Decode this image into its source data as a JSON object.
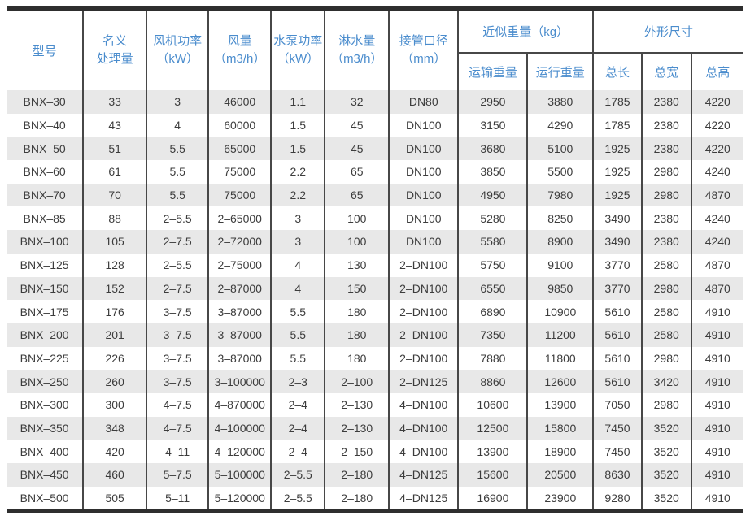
{
  "colors": {
    "header_text": "#4a8ccd",
    "body_text": "#3c3c3c",
    "stripe": "#e8e8e8",
    "grid_line": "#474747",
    "edge_bar": "#2e2e2e",
    "background": "#ffffff"
  },
  "table": {
    "headers": {
      "model": "型号",
      "capacity": [
        "名义",
        "处理量"
      ],
      "fan_power": [
        "风机功率",
        "（kW）"
      ],
      "air_flow": [
        "风量",
        "（m3/h）"
      ],
      "pump_power": [
        "水泵功率",
        "（kW）"
      ],
      "spray_volume": [
        "淋水量",
        "（m3/h）"
      ],
      "pipe_diameter": [
        "接管口径",
        "（mm）"
      ],
      "weight_group": "近似重量（kg）",
      "dimensions_group": "外形尺寸",
      "transport_weight": "运输重量",
      "operating_weight": "运行重量",
      "total_length": "总长",
      "total_width": "总宽",
      "total_height": "总高"
    },
    "columns": [
      "model",
      "capacity",
      "fan_power",
      "air_flow",
      "pump_power",
      "spray_volume",
      "pipe_diameter",
      "transport_weight",
      "operating_weight",
      "total_length",
      "total_width",
      "total_height"
    ],
    "rows": [
      [
        "BNX–30",
        "33",
        "3",
        "46000",
        "1.1",
        "32",
        "DN80",
        "2950",
        "3880",
        "1785",
        "2380",
        "4220"
      ],
      [
        "BNX–40",
        "43",
        "4",
        "60000",
        "1.5",
        "45",
        "DN100",
        "3150",
        "4290",
        "1785",
        "2380",
        "4220"
      ],
      [
        "BNX–50",
        "51",
        "5.5",
        "65000",
        "1.5",
        "45",
        "DN100",
        "3680",
        "5100",
        "1925",
        "2380",
        "4220"
      ],
      [
        "BNX–60",
        "61",
        "5.5",
        "75000",
        "2.2",
        "65",
        "DN100",
        "3850",
        "5500",
        "1925",
        "2980",
        "4240"
      ],
      [
        "BNX–70",
        "70",
        "5.5",
        "75000",
        "2.2",
        "65",
        "DN100",
        "4950",
        "7980",
        "1925",
        "2980",
        "4870"
      ],
      [
        "BNX–85",
        "88",
        "2–5.5",
        "2–65000",
        "3",
        "100",
        "DN100",
        "5280",
        "8250",
        "3490",
        "2380",
        "4240"
      ],
      [
        "BNX–100",
        "105",
        "2–7.5",
        "2–72000",
        "3",
        "100",
        "DN100",
        "5580",
        "8900",
        "3490",
        "2380",
        "4240"
      ],
      [
        "BNX–125",
        "128",
        "2–5.5",
        "2–75000",
        "4",
        "130",
        "2–DN100",
        "5750",
        "9100",
        "3770",
        "2580",
        "4870"
      ],
      [
        "BNX–150",
        "152",
        "2–7.5",
        "2–87000",
        "4",
        "150",
        "2–DN100",
        "6550",
        "9850",
        "3770",
        "2980",
        "4870"
      ],
      [
        "BNX–175",
        "176",
        "3–7.5",
        "3–87000",
        "5.5",
        "180",
        "2–DN100",
        "6890",
        "10900",
        "5610",
        "2580",
        "4910"
      ],
      [
        "BNX–200",
        "201",
        "3–7.5",
        "3–87000",
        "5.5",
        "180",
        "2–DN100",
        "7350",
        "11200",
        "5610",
        "2580",
        "4910"
      ],
      [
        "BNX–225",
        "226",
        "3–7.5",
        "3–87000",
        "5.5",
        "180",
        "2–DN100",
        "7880",
        "11800",
        "5610",
        "2980",
        "4910"
      ],
      [
        "BNX–250",
        "260",
        "3–7.5",
        "3–100000",
        "2–3",
        "2–100",
        "2–DN125",
        "8860",
        "12600",
        "5610",
        "3420",
        "4910"
      ],
      [
        "BNX–300",
        "300",
        "4–7.5",
        "4–870000",
        "2–4",
        "2–130",
        "4–DN100",
        "10600",
        "13900",
        "7050",
        "2980",
        "4910"
      ],
      [
        "BNX–350",
        "348",
        "4–7.5",
        "4–100000",
        "2–4",
        "2–130",
        "4–DN100",
        "12500",
        "15800",
        "7450",
        "3520",
        "4910"
      ],
      [
        "BNX–400",
        "420",
        "4–11",
        "4–120000",
        "2–4",
        "2–150",
        "4–DN100",
        "13900",
        "18900",
        "7450",
        "3520",
        "4910"
      ],
      [
        "BNX–450",
        "460",
        "5–7.5",
        "5–100000",
        "2–5.5",
        "2–180",
        "4–DN125",
        "15600",
        "20500",
        "8630",
        "3520",
        "4910"
      ],
      [
        "BNX–500",
        "505",
        "5–11",
        "5–120000",
        "2–5.5",
        "2–180",
        "4–DN125",
        "16900",
        "23900",
        "9280",
        "3520",
        "4910"
      ]
    ]
  }
}
